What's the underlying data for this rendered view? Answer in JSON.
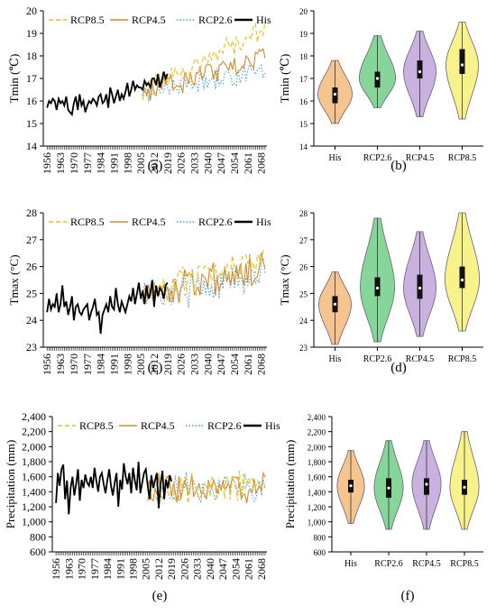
{
  "colors": {
    "his": "#000000",
    "rcp85": "#e8c020",
    "rcp45": "#d08a30",
    "rcp26": "#4a9fd6",
    "vHis": "#f6c48e",
    "v26": "#86d69a",
    "v45": "#c9b2e0",
    "v85": "#f7f28a"
  },
  "chart_data": [
    {
      "type": "line",
      "panel_label": "(a)",
      "ylabel": "Tmin (℃)",
      "ylim": [
        14,
        20
      ],
      "yticks": [
        14,
        15,
        16,
        17,
        18,
        19,
        20
      ],
      "xlim": [
        1954,
        2071
      ],
      "xticks": [
        "1956",
        "1963",
        "1970",
        "1977",
        "1984",
        "1991",
        "1998",
        "2005",
        "2012",
        "2019",
        "2026",
        "2033",
        "2040",
        "2047",
        "2054",
        "2061",
        "2068"
      ],
      "series": [
        {
          "name": "RCP8.5",
          "key": "rcp85",
          "style": "dash",
          "start": 2006,
          "base": [
            16.4,
            19.2
          ],
          "amp": 0.55
        },
        {
          "name": "RCP4.5",
          "key": "rcp45",
          "style": "solid",
          "start": 2006,
          "base": [
            16.4,
            17.9
          ],
          "amp": 0.6
        },
        {
          "name": "RCP2.6",
          "key": "rcp26",
          "style": "dot",
          "start": 2006,
          "base": [
            16.4,
            17.3
          ],
          "amp": 0.55
        },
        {
          "name": "His",
          "key": "his",
          "style": "solid",
          "start": 1956,
          "values": [
            15.7,
            16.0,
            15.9,
            16.1,
            16.0,
            15.6,
            16.1,
            15.9,
            16.0,
            15.8,
            16.2,
            15.6,
            15.5,
            15.4,
            15.9,
            16.2,
            15.6,
            16.3,
            15.8,
            16.0,
            15.5,
            15.8,
            16.0,
            15.9,
            16.1,
            16.0,
            15.8,
            16.2,
            16.3,
            15.9,
            16.0,
            16.3,
            15.7,
            16.6,
            16.3,
            15.9,
            16.2,
            16.5,
            16.0,
            16.3,
            16.1,
            16.4,
            16.8,
            16.2,
            16.5,
            16.9,
            16.5,
            16.7,
            16.6,
            16.6,
            16.5,
            16.9,
            16.7,
            16.8,
            16.6,
            17.0,
            17.0,
            16.7,
            17.2,
            16.6,
            16.9,
            17.3,
            17.0,
            17.2
          ]
        }
      ]
    },
    {
      "type": "violin",
      "panel_label": "(b)",
      "ylabel": "Tmin (℃)",
      "ylim": [
        14,
        20
      ],
      "yticks": [
        14,
        15,
        16,
        17,
        18,
        19,
        20
      ],
      "categories": [
        "His",
        "RCP2.6",
        "RCP4.5",
        "RCP8.5"
      ],
      "min": [
        15.0,
        15.7,
        15.3,
        15.2
      ],
      "q1": [
        15.9,
        16.6,
        17.0,
        17.2
      ],
      "median": [
        16.3,
        17.0,
        17.3,
        17.6
      ],
      "q3": [
        16.6,
        17.3,
        17.8,
        18.3
      ],
      "max": [
        17.8,
        18.9,
        19.1,
        19.5
      ],
      "width": [
        0.9,
        0.95,
        0.85,
        0.85
      ]
    },
    {
      "type": "line",
      "panel_label": "(c)",
      "ylabel": "Tmax (°C)",
      "ylim": [
        23,
        28
      ],
      "yticks": [
        23,
        24,
        25,
        26,
        27,
        28
      ],
      "xlim": [
        1954,
        2071
      ],
      "xticks": [
        "1956",
        "1963",
        "1970",
        "1977",
        "1984",
        "1991",
        "1998",
        "2005",
        "2012",
        "2019",
        "2026",
        "2033",
        "2040",
        "2047",
        "2054",
        "2061",
        "2068"
      ],
      "series": [
        {
          "name": "RCP8.5",
          "key": "rcp85",
          "style": "dash",
          "start": 2006,
          "base": [
            25.0,
            26.3
          ],
          "amp": 0.7
        },
        {
          "name": "RCP4.5",
          "key": "rcp45",
          "style": "solid",
          "start": 2006,
          "base": [
            24.9,
            26.0
          ],
          "amp": 0.75
        },
        {
          "name": "RCP2.6",
          "key": "rcp26",
          "style": "dot",
          "start": 2006,
          "base": [
            24.8,
            25.8
          ],
          "amp": 0.8
        },
        {
          "name": "His",
          "key": "his",
          "style": "solid",
          "start": 1956,
          "values": [
            24.3,
            24.8,
            24.4,
            24.6,
            24.5,
            25.0,
            24.3,
            24.6,
            25.3,
            24.5,
            24.7,
            24.2,
            24.5,
            24.9,
            24.0,
            24.5,
            24.6,
            24.3,
            24.2,
            24.4,
            24.5,
            24.6,
            24.0,
            24.3,
            24.5,
            24.8,
            24.2,
            24.3,
            23.5,
            24.2,
            24.4,
            24.6,
            24.3,
            24.9,
            24.5,
            24.4,
            25.2,
            24.6,
            24.3,
            24.7,
            24.5,
            24.3,
            24.6,
            24.9,
            24.7,
            25.2,
            24.6,
            25.0,
            25.4,
            24.8,
            25.1,
            24.6,
            25.3,
            24.8,
            25.0,
            25.5,
            24.5,
            25.3,
            24.9,
            25.2,
            25.1,
            24.8,
            25.3,
            25.4
          ]
        }
      ]
    },
    {
      "type": "violin",
      "panel_label": "(d)",
      "ylabel": "Tmax (°C)",
      "ylim": [
        23,
        28
      ],
      "yticks": [
        23,
        24,
        25,
        26,
        27,
        28
      ],
      "categories": [
        "His",
        "RCP2.6",
        "RCP4.5",
        "RCP8.5"
      ],
      "min": [
        23.1,
        23.2,
        23.4,
        23.6
      ],
      "q1": [
        24.3,
        24.9,
        24.8,
        25.2
      ],
      "median": [
        24.6,
        25.2,
        25.2,
        25.5
      ],
      "q3": [
        24.9,
        25.6,
        25.7,
        26.0
      ],
      "max": [
        25.8,
        27.8,
        27.3,
        28.0
      ],
      "width": [
        0.85,
        0.9,
        0.85,
        0.9
      ]
    },
    {
      "type": "line",
      "panel_label": "(e)",
      "ylabel": "Precipitation (mm)",
      "ylim": [
        600,
        2400
      ],
      "yticks": [
        600,
        800,
        1000,
        1200,
        1400,
        1600,
        1800,
        2000,
        2200,
        2400
      ],
      "yticklabels": [
        "600",
        "800",
        "1,000",
        "1,200",
        "1,400",
        "1,600",
        "1,800",
        "2,000",
        "2,200",
        "2,400"
      ],
      "xlim": [
        1954,
        2071
      ],
      "xticks": [
        "1956",
        "1963",
        "1970",
        "1977",
        "1984",
        "1991",
        "1998",
        "2005",
        "2012",
        "2019",
        "2026",
        "2033",
        "2040",
        "2047",
        "2054",
        "2061",
        "2068"
      ],
      "series": [
        {
          "name": "RCP8.5",
          "key": "rcp85",
          "style": "dash",
          "start": 2006,
          "base": [
            1470,
            1480
          ],
          "amp": 260
        },
        {
          "name": "RCP4.5",
          "key": "rcp45",
          "style": "solid",
          "start": 2006,
          "base": [
            1460,
            1460
          ],
          "amp": 240
        },
        {
          "name": "RCP2.6",
          "key": "rcp26",
          "style": "dot",
          "start": 2006,
          "base": [
            1450,
            1450
          ],
          "amp": 220
        },
        {
          "name": "His",
          "key": "his",
          "style": "solid",
          "start": 1956,
          "values": [
            1250,
            1650,
            1480,
            1700,
            1760,
            1300,
            1550,
            1100,
            1450,
            1600,
            1350,
            1500,
            1700,
            1280,
            1560,
            1450,
            1630,
            1520,
            1480,
            1600,
            1450,
            1720,
            1550,
            1400,
            1600,
            1650,
            1500,
            1380,
            1550,
            1700,
            1480,
            1350,
            1520,
            1650,
            1200,
            1560,
            1430,
            1780,
            1600,
            1500,
            1650,
            1380,
            1720,
            1550,
            1420,
            1800,
            1380,
            1520,
            1650,
            1700,
            1480,
            1300,
            1620,
            1450,
            1550,
            1650,
            1180,
            1500,
            1680,
            1300,
            1560,
            1450,
            1620,
            1540
          ]
        }
      ]
    },
    {
      "type": "violin",
      "panel_label": "(f)",
      "ylabel": "Precipitation (mm)",
      "ylim": [
        600,
        2400
      ],
      "yticks": [
        600,
        800,
        1000,
        1200,
        1400,
        1600,
        1800,
        2000,
        2200,
        2400
      ],
      "yticklabels": [
        "600",
        "800",
        "1,000",
        "1,200",
        "1,400",
        "1,600",
        "1,800",
        "2,000",
        "2,200",
        "2,400"
      ],
      "categories": [
        "His",
        "RCP2.6",
        "RCP4.5",
        "RCP8.5"
      ],
      "min": [
        980,
        900,
        900,
        900
      ],
      "q1": [
        1390,
        1320,
        1360,
        1360
      ],
      "median": [
        1480,
        1450,
        1500,
        1460
      ],
      "q3": [
        1560,
        1580,
        1580,
        1560
      ],
      "max": [
        1950,
        2080,
        2080,
        2200
      ],
      "width": [
        0.8,
        0.85,
        0.85,
        0.85
      ]
    }
  ]
}
